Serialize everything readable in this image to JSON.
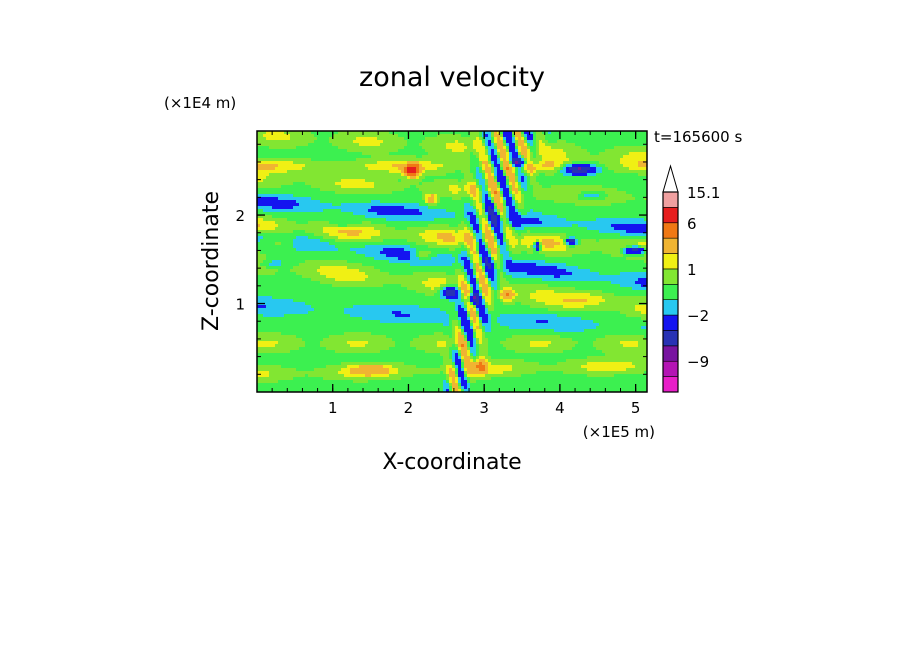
{
  "chart_data": {
    "type": "heatmap",
    "title": "zonal velocity",
    "xlabel": "X-coordinate",
    "ylabel": "Z-coordinate",
    "x_scale_label": "(×1E5 m)",
    "y_scale_label": "(×1E4 m)",
    "time_label": "t=165600 s",
    "xlim": [
      0,
      5.15
    ],
    "ylim": [
      0,
      2.95
    ],
    "x_ticks": [
      {
        "value": 1,
        "label": "1"
      },
      {
        "value": 2,
        "label": "2"
      },
      {
        "value": 3,
        "label": "3"
      },
      {
        "value": 4,
        "label": "4"
      },
      {
        "value": 5,
        "label": "5"
      }
    ],
    "y_ticks": [
      {
        "value": 1,
        "label": "1"
      },
      {
        "value": 2,
        "label": "2"
      }
    ],
    "colorbar": {
      "levels": [
        {
          "lo": -15,
          "hi": -12,
          "color": "#e81ec8"
        },
        {
          "lo": -12,
          "hi": -9,
          "color": "#b414b4"
        },
        {
          "lo": -9,
          "hi": -6,
          "color": "#7814a0"
        },
        {
          "lo": -6,
          "hi": -4,
          "color": "#2832b4"
        },
        {
          "lo": -4,
          "hi": -2,
          "color": "#1414f0"
        },
        {
          "lo": -2,
          "hi": -1,
          "color": "#28c8f0"
        },
        {
          "lo": -1,
          "hi": 0,
          "color": "#3cf050"
        },
        {
          "lo": 0,
          "hi": 1,
          "color": "#82e632"
        },
        {
          "lo": 1,
          "hi": 2,
          "color": "#f0f014"
        },
        {
          "lo": 2,
          "hi": 4,
          "color": "#f0b432"
        },
        {
          "lo": 4,
          "hi": 6,
          "color": "#f07814"
        },
        {
          "lo": 6,
          "hi": 10,
          "color": "#e61e1e"
        },
        {
          "lo": 10,
          "hi": 15.1,
          "color": "#f0a0a0"
        }
      ],
      "labels": [
        {
          "value": 15.1,
          "label": "15.1"
        },
        {
          "value": 6,
          "label": "6"
        },
        {
          "value": 1,
          "label": "1"
        },
        {
          "value": -2,
          "label": "−2"
        },
        {
          "value": -9,
          "label": "−9"
        }
      ],
      "overflow_color": "#ffffff"
    },
    "field": {
      "background_value": -0.5,
      "features": [
        {
          "type": "band",
          "z0": 2.78,
          "slope": -0.05,
          "width": 0.12,
          "amp": 1.5,
          "wavelen": 1.2,
          "phase": 0.2
        },
        {
          "type": "band",
          "z0": 2.55,
          "slope": 0.0,
          "width": 0.08,
          "amp": 2.2,
          "wavelen": 1.8,
          "phase": 1.1
        },
        {
          "type": "band",
          "z0": 2.3,
          "slope": -0.04,
          "width": 0.1,
          "amp": 1.6,
          "wavelen": 1.5,
          "phase": 2.4
        },
        {
          "type": "band",
          "z0": 2.0,
          "slope": -0.06,
          "width": 0.09,
          "amp": -1.8,
          "wavelen": 1.6,
          "phase": 0.7
        },
        {
          "type": "band",
          "z0": 1.75,
          "slope": -0.05,
          "width": 0.11,
          "amp": 2.4,
          "wavelen": 1.3,
          "phase": 1.9
        },
        {
          "type": "band",
          "z0": 1.5,
          "slope": -0.1,
          "width": 0.09,
          "amp": -2.0,
          "wavelen": 1.7,
          "phase": 0.4
        },
        {
          "type": "band",
          "z0": 1.2,
          "slope": -0.1,
          "width": 0.12,
          "amp": 1.9,
          "wavelen": 1.4,
          "phase": 2.8
        },
        {
          "type": "band",
          "z0": 0.85,
          "slope": -0.05,
          "width": 0.1,
          "amp": -1.3,
          "wavelen": 1.9,
          "phase": 1.6
        },
        {
          "type": "band",
          "z0": 0.55,
          "slope": 0.0,
          "width": 0.11,
          "amp": 1.4,
          "wavelen": 1.2,
          "phase": 0.9
        },
        {
          "type": "band",
          "z0": 0.25,
          "slope": 0.02,
          "width": 0.09,
          "amp": 1.8,
          "wavelen": 1.6,
          "phase": 2.2
        },
        {
          "type": "blob",
          "x": 2.05,
          "z": 2.5,
          "rx": 0.09,
          "rz": 0.07,
          "amp": 8.0
        },
        {
          "type": "blob",
          "x": 2.3,
          "z": 2.18,
          "rx": 0.08,
          "rz": 0.06,
          "amp": 3.5
        },
        {
          "type": "blob",
          "x": 3.45,
          "z": 2.6,
          "rx": 0.15,
          "rz": 0.05,
          "amp": -5.0
        },
        {
          "type": "blob",
          "x": 4.25,
          "z": 2.52,
          "rx": 0.22,
          "rz": 0.06,
          "amp": -7.0
        },
        {
          "type": "blob",
          "x": 4.4,
          "z": 2.22,
          "rx": 0.2,
          "rz": 0.05,
          "amp": -3.0
        },
        {
          "type": "blob",
          "x": 5.0,
          "z": 1.6,
          "rx": 0.15,
          "rz": 0.05,
          "amp": -7.0
        },
        {
          "type": "blob",
          "x": 4.15,
          "z": 1.7,
          "rx": 0.08,
          "rz": 0.05,
          "amp": -6.0
        },
        {
          "type": "blob",
          "x": 3.7,
          "z": 1.65,
          "rx": 0.05,
          "rz": 0.05,
          "amp": -6.0
        },
        {
          "type": "blob",
          "x": 2.55,
          "z": 1.13,
          "rx": 0.12,
          "rz": 0.07,
          "amp": -7.0
        },
        {
          "type": "blob",
          "x": 2.85,
          "z": 1.05,
          "rx": 0.07,
          "rz": 0.06,
          "amp": -6.0
        },
        {
          "type": "blob",
          "x": 3.3,
          "z": 1.1,
          "rx": 0.1,
          "rz": 0.07,
          "amp": 4.0
        },
        {
          "type": "blob",
          "x": 2.2,
          "z": 1.55,
          "rx": 0.16,
          "rz": 0.06,
          "amp": 3.0
        },
        {
          "type": "blob",
          "x": 2.95,
          "z": 0.3,
          "rx": 0.08,
          "rz": 0.1,
          "amp": 4.0
        },
        {
          "type": "blob",
          "x": 1.5,
          "z": 0.25,
          "rx": 0.25,
          "rz": 0.06,
          "amp": 2.5
        },
        {
          "type": "blob",
          "x": 4.4,
          "z": 1.05,
          "rx": 0.3,
          "rz": 0.08,
          "amp": 1.5
        },
        {
          "type": "blob",
          "x": 0.3,
          "z": 1.7,
          "rx": 0.25,
          "rz": 0.08,
          "amp": 2.5
        },
        {
          "type": "blob",
          "x": 0.2,
          "z": 1.45,
          "rx": 0.2,
          "rz": 0.05,
          "amp": -1.8
        },
        {
          "type": "blob",
          "x": 1.15,
          "z": 1.9,
          "rx": 0.2,
          "rz": 0.05,
          "amp": -1.8
        },
        {
          "type": "vwaves",
          "x0": 3.0,
          "half_width": 0.55,
          "amp": 3.5,
          "kx": 22.0,
          "kz": 9.0
        }
      ]
    }
  }
}
